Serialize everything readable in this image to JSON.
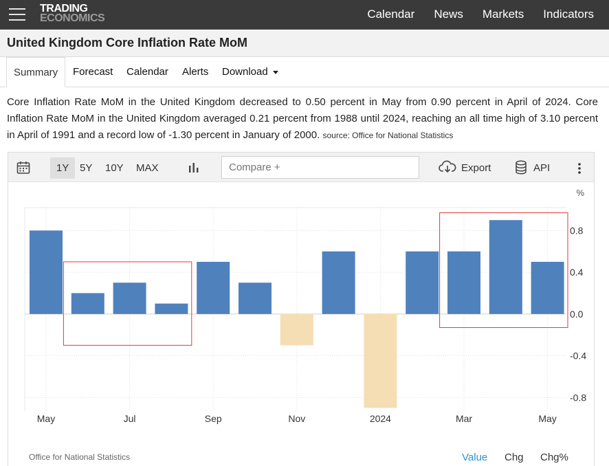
{
  "header": {
    "logo_line1": "TRADING",
    "logo_line2": "ECONOMICS",
    "nav": [
      "Calendar",
      "News",
      "Markets",
      "Indicators"
    ]
  },
  "page_title": "United Kingdom Core Inflation Rate MoM",
  "tabs": {
    "summary": "Summary",
    "forecast": "Forecast",
    "calendar": "Calendar",
    "alerts": "Alerts",
    "download": "Download"
  },
  "description": {
    "text": "Core Inflation Rate MoM in the United Kingdom decreased to 0.50 percent in May from 0.90 percent in April of 2024. Core Inflation Rate MoM in the United Kingdom averaged 0.21 percent from 1988 until 2024, reaching an all time high of 3.10 percent in April of 1991 and a record low of -1.30 percent in January of 2000.",
    "source": "source: Office for National Statistics"
  },
  "toolbar": {
    "ranges": [
      "1Y",
      "5Y",
      "10Y",
      "MAX"
    ],
    "selected_range": "1Y",
    "compare_placeholder": "Compare +",
    "export_label": "Export",
    "api_label": "API"
  },
  "chart_footer": {
    "source": "Office for National Statistics",
    "modes": [
      "Value",
      "Chg",
      "Chg%"
    ],
    "selected_mode": "Value"
  },
  "colors": {
    "positive_bar": "#4f81bd",
    "negative_bar": "#f5deb3",
    "annotation_box": "#e8353b",
    "active_link": "#2f8fd5"
  },
  "chart_data": {
    "type": "bar",
    "categories": [
      "May 2023",
      "Jun 2023",
      "Jul 2023",
      "Aug 2023",
      "Sep 2023",
      "Oct 2023",
      "Nov 2023",
      "Dec 2023",
      "Jan 2024",
      "Feb 2024",
      "Mar 2024",
      "Apr 2024",
      "May 2024"
    ],
    "values": [
      0.8,
      0.2,
      0.3,
      0.1,
      0.5,
      0.3,
      -0.3,
      0.6,
      -0.9,
      0.6,
      0.6,
      0.9,
      0.5
    ],
    "x_tick_labels": [
      "May",
      "Jul",
      "Sep",
      "Nov",
      "2024",
      "Mar",
      "May"
    ],
    "y_ticks": [
      0.8,
      0.4,
      0.0,
      -0.4,
      -0.8
    ],
    "y_tick_labels": [
      "0.8",
      "0.4",
      "0.0",
      "-0.4",
      "-0.8"
    ],
    "ylim": [
      -0.93,
      1.02
    ],
    "unit_label": "%",
    "title": "",
    "xlabel": "",
    "ylabel": "",
    "grid": true,
    "legend": "none",
    "annotations": [
      {
        "type": "box",
        "from_category": "Jun 2023",
        "to_category": "Aug 2023",
        "from_value": 0.5,
        "to_value": -0.3
      },
      {
        "type": "box",
        "from_category": "Mar 2024",
        "to_category": "May 2024",
        "from_value": 0.97,
        "to_value": -0.13
      }
    ]
  }
}
